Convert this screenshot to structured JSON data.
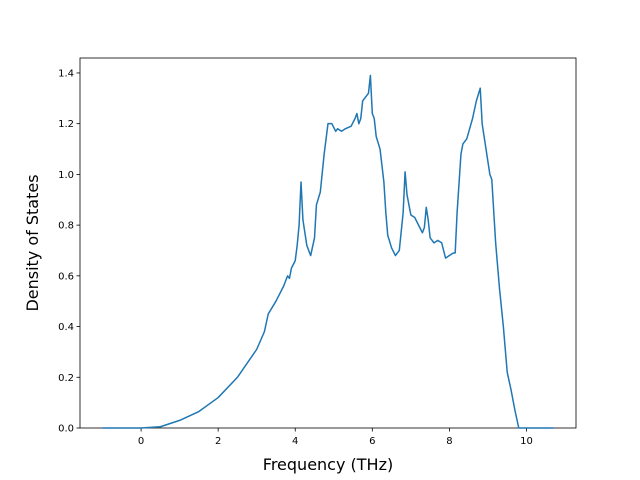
{
  "chart_data": {
    "type": "line",
    "xlabel": "Frequency (THz)",
    "ylabel": "Density of States",
    "xlim": [
      -1.585,
      11.285
    ],
    "ylim": [
      0,
      1.459
    ],
    "xticks": [
      0,
      2,
      4,
      6,
      8,
      10
    ],
    "yticks": [
      {
        "value": 0,
        "label": "0.0"
      },
      0.2,
      0.4,
      0.6,
      0.8,
      {
        "value": 1,
        "label": "1.0"
      },
      1.2,
      1.4
    ],
    "x": [
      -1.0,
      0,
      0.5,
      1.0,
      1.5,
      2.0,
      2.5,
      3.0,
      3.2,
      3.3,
      3.5,
      3.7,
      3.8,
      3.85,
      3.9,
      4.0,
      4.05,
      4.1,
      4.15,
      4.2,
      4.3,
      4.4,
      4.5,
      4.55,
      4.65,
      4.75,
      4.85,
      4.95,
      5.05,
      5.1,
      5.2,
      5.3,
      5.45,
      5.55,
      5.6,
      5.65,
      5.7,
      5.75,
      5.85,
      5.9,
      5.95,
      6.0,
      6.05,
      6.1,
      6.2,
      6.3,
      6.35,
      6.4,
      6.5,
      6.6,
      6.7,
      6.8,
      6.85,
      6.9,
      7.0,
      7.1,
      7.2,
      7.3,
      7.35,
      7.4,
      7.45,
      7.5,
      7.6,
      7.7,
      7.8,
      7.9,
      8.0,
      8.1,
      8.15,
      8.2,
      8.3,
      8.35,
      8.45,
      8.6,
      8.7,
      8.8,
      8.85,
      9.0,
      9.05,
      9.1,
      9.2,
      9.3,
      9.4,
      9.5,
      9.6,
      9.7,
      9.8,
      10.7
    ],
    "series": [
      {
        "color": "#1f77b4",
        "values": [
          0,
          0,
          0.005,
          0.03,
          0.065,
          0.12,
          0.2,
          0.31,
          0.38,
          0.45,
          0.5,
          0.56,
          0.6,
          0.59,
          0.63,
          0.66,
          0.72,
          0.8,
          0.97,
          0.82,
          0.72,
          0.68,
          0.75,
          0.88,
          0.93,
          1.08,
          1.2,
          1.2,
          1.17,
          1.18,
          1.17,
          1.18,
          1.19,
          1.22,
          1.24,
          1.2,
          1.22,
          1.29,
          1.31,
          1.32,
          1.39,
          1.24,
          1.22,
          1.15,
          1.1,
          0.97,
          0.85,
          0.76,
          0.71,
          0.68,
          0.7,
          0.85,
          1.01,
          0.92,
          0.84,
          0.83,
          0.8,
          0.77,
          0.79,
          0.87,
          0.82,
          0.75,
          0.73,
          0.74,
          0.73,
          0.67,
          0.68,
          0.69,
          0.69,
          0.85,
          1.08,
          1.12,
          1.14,
          1.22,
          1.29,
          1.34,
          1.2,
          1.05,
          1.0,
          0.98,
          0.73,
          0.55,
          0.4,
          0.22,
          0.15,
          0.07,
          0,
          0
        ]
      }
    ]
  }
}
